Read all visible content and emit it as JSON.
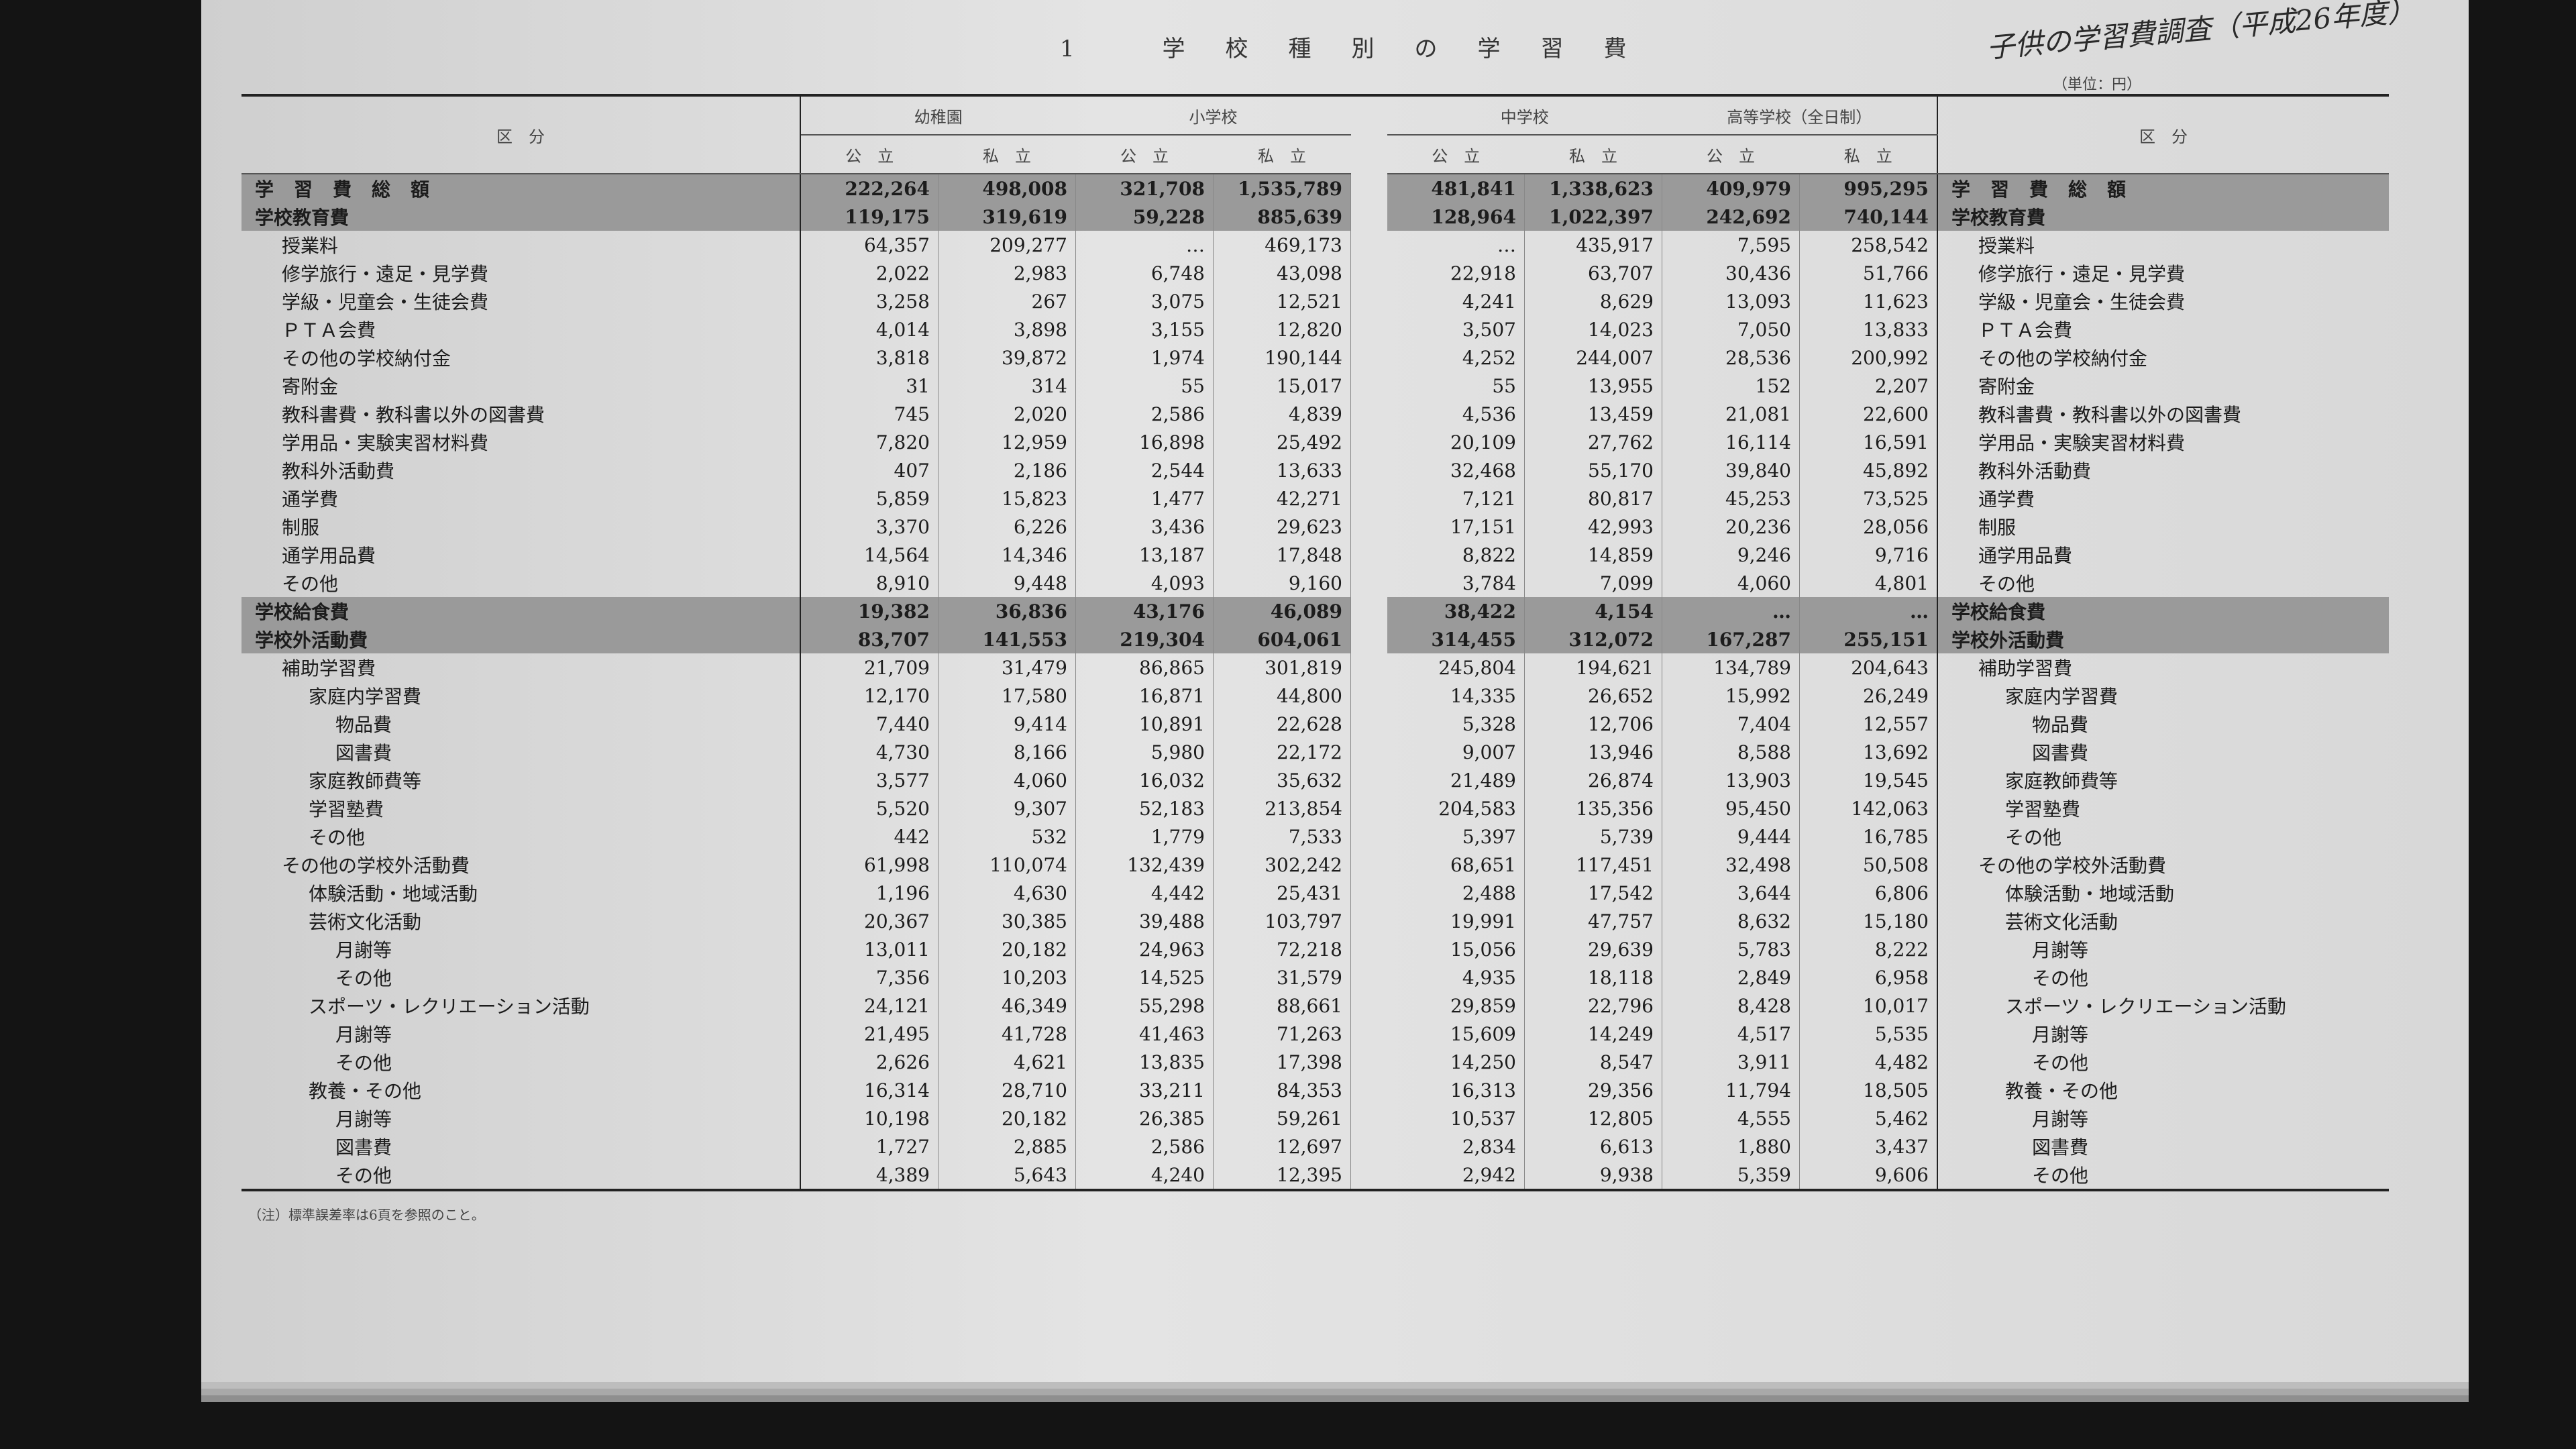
{
  "header": {
    "title": "1 学校種別の学習費",
    "handwritten": "子供の学習費調査（平成26年度）",
    "unit": "（単位：円）",
    "category": "区　分"
  },
  "columns": {
    "groups": [
      "幼稚園",
      "小学校",
      "中学校",
      "高等学校（全日制）"
    ],
    "sub": [
      "公　立",
      "私　立"
    ]
  },
  "rows": [
    {
      "label": "学習費総額",
      "level": 0,
      "shade": "dark",
      "values": [
        "222,264",
        "498,008",
        "321,708",
        "1,535,789",
        "481,841",
        "1,338,623",
        "409,979",
        "995,295"
      ]
    },
    {
      "label": "学校教育費",
      "level": 0,
      "shade": "mid",
      "values": [
        "119,175",
        "319,619",
        "59,228",
        "885,639",
        "128,964",
        "1,022,397",
        "242,692",
        "740,144"
      ]
    },
    {
      "label": "授業料",
      "level": 1,
      "values": [
        "64,357",
        "209,277",
        "…",
        "469,173",
        "…",
        "435,917",
        "7,595",
        "258,542"
      ]
    },
    {
      "label": "修学旅行・遠足・見学費",
      "level": 1,
      "values": [
        "2,022",
        "2,983",
        "6,748",
        "43,098",
        "22,918",
        "63,707",
        "30,436",
        "51,766"
      ]
    },
    {
      "label": "学級・児童会・生徒会費",
      "level": 1,
      "values": [
        "3,258",
        "267",
        "3,075",
        "12,521",
        "4,241",
        "8,629",
        "13,093",
        "11,623"
      ]
    },
    {
      "label": "ＰＴＡ会費",
      "level": 1,
      "values": [
        "4,014",
        "3,898",
        "3,155",
        "12,820",
        "3,507",
        "14,023",
        "7,050",
        "13,833"
      ]
    },
    {
      "label": "その他の学校納付金",
      "level": 1,
      "values": [
        "3,818",
        "39,872",
        "1,974",
        "190,144",
        "4,252",
        "244,007",
        "28,536",
        "200,992"
      ]
    },
    {
      "label": "寄附金",
      "level": 1,
      "values": [
        "31",
        "314",
        "55",
        "15,017",
        "55",
        "13,955",
        "152",
        "2,207"
      ]
    },
    {
      "label": "教科書費・教科書以外の図書費",
      "level": 1,
      "values": [
        "745",
        "2,020",
        "2,586",
        "4,839",
        "4,536",
        "13,459",
        "21,081",
        "22,600"
      ]
    },
    {
      "label": "学用品・実験実習材料費",
      "level": 1,
      "values": [
        "7,820",
        "12,959",
        "16,898",
        "25,492",
        "20,109",
        "27,762",
        "16,114",
        "16,591"
      ]
    },
    {
      "label": "教科外活動費",
      "level": 1,
      "values": [
        "407",
        "2,186",
        "2,544",
        "13,633",
        "32,468",
        "55,170",
        "39,840",
        "45,892"
      ]
    },
    {
      "label": "通学費",
      "level": 1,
      "values": [
        "5,859",
        "15,823",
        "1,477",
        "42,271",
        "7,121",
        "80,817",
        "45,253",
        "73,525"
      ]
    },
    {
      "label": "制服",
      "level": 1,
      "values": [
        "3,370",
        "6,226",
        "3,436",
        "29,623",
        "17,151",
        "42,993",
        "20,236",
        "28,056"
      ]
    },
    {
      "label": "通学用品費",
      "level": 1,
      "values": [
        "14,564",
        "14,346",
        "13,187",
        "17,848",
        "8,822",
        "14,859",
        "9,246",
        "9,716"
      ]
    },
    {
      "label": "その他",
      "level": 1,
      "values": [
        "8,910",
        "9,448",
        "4,093",
        "9,160",
        "3,784",
        "7,099",
        "4,060",
        "4,801"
      ]
    },
    {
      "label": "学校給食費",
      "level": 0,
      "shade": "mid",
      "values": [
        "19,382",
        "36,836",
        "43,176",
        "46,089",
        "38,422",
        "4,154",
        "…",
        "…"
      ]
    },
    {
      "label": "学校外活動費",
      "level": 0,
      "shade": "mid",
      "values": [
        "83,707",
        "141,553",
        "219,304",
        "604,061",
        "314,455",
        "312,072",
        "167,287",
        "255,151"
      ]
    },
    {
      "label": "補助学習費",
      "level": 1,
      "values": [
        "21,709",
        "31,479",
        "86,865",
        "301,819",
        "245,804",
        "194,621",
        "134,789",
        "204,643"
      ]
    },
    {
      "label": "家庭内学習費",
      "level": 2,
      "values": [
        "12,170",
        "17,580",
        "16,871",
        "44,800",
        "14,335",
        "26,652",
        "15,992",
        "26,249"
      ]
    },
    {
      "label": "物品費",
      "level": 3,
      "values": [
        "7,440",
        "9,414",
        "10,891",
        "22,628",
        "5,328",
        "12,706",
        "7,404",
        "12,557"
      ]
    },
    {
      "label": "図書費",
      "level": 3,
      "values": [
        "4,730",
        "8,166",
        "5,980",
        "22,172",
        "9,007",
        "13,946",
        "8,588",
        "13,692"
      ]
    },
    {
      "label": "家庭教師費等",
      "level": 2,
      "values": [
        "3,577",
        "4,060",
        "16,032",
        "35,632",
        "21,489",
        "26,874",
        "13,903",
        "19,545"
      ]
    },
    {
      "label": "学習塾費",
      "level": 2,
      "values": [
        "5,520",
        "9,307",
        "52,183",
        "213,854",
        "204,583",
        "135,356",
        "95,450",
        "142,063"
      ]
    },
    {
      "label": "その他",
      "level": 2,
      "values": [
        "442",
        "532",
        "1,779",
        "7,533",
        "5,397",
        "5,739",
        "9,444",
        "16,785"
      ]
    },
    {
      "label": "その他の学校外活動費",
      "level": 1,
      "values": [
        "61,998",
        "110,074",
        "132,439",
        "302,242",
        "68,651",
        "117,451",
        "32,498",
        "50,508"
      ]
    },
    {
      "label": "体験活動・地域活動",
      "level": 2,
      "values": [
        "1,196",
        "4,630",
        "4,442",
        "25,431",
        "2,488",
        "17,542",
        "3,644",
        "6,806"
      ]
    },
    {
      "label": "芸術文化活動",
      "level": 2,
      "values": [
        "20,367",
        "30,385",
        "39,488",
        "103,797",
        "19,991",
        "47,757",
        "8,632",
        "15,180"
      ]
    },
    {
      "label": "月謝等",
      "level": 3,
      "values": [
        "13,011",
        "20,182",
        "24,963",
        "72,218",
        "15,056",
        "29,639",
        "5,783",
        "8,222"
      ]
    },
    {
      "label": "その他",
      "level": 3,
      "values": [
        "7,356",
        "10,203",
        "14,525",
        "31,579",
        "4,935",
        "18,118",
        "2,849",
        "6,958"
      ]
    },
    {
      "label": "スポーツ・レクリエーション活動",
      "level": 2,
      "values": [
        "24,121",
        "46,349",
        "55,298",
        "88,661",
        "29,859",
        "22,796",
        "8,428",
        "10,017"
      ]
    },
    {
      "label": "月謝等",
      "level": 3,
      "values": [
        "21,495",
        "41,728",
        "41,463",
        "71,263",
        "15,609",
        "14,249",
        "4,517",
        "5,535"
      ]
    },
    {
      "label": "その他",
      "level": 3,
      "values": [
        "2,626",
        "4,621",
        "13,835",
        "17,398",
        "14,250",
        "8,547",
        "3,911",
        "4,482"
      ]
    },
    {
      "label": "教養・その他",
      "level": 2,
      "values": [
        "16,314",
        "28,710",
        "33,211",
        "84,353",
        "16,313",
        "29,356",
        "11,794",
        "18,505"
      ]
    },
    {
      "label": "月謝等",
      "level": 3,
      "values": [
        "10,198",
        "20,182",
        "26,385",
        "59,261",
        "10,537",
        "12,805",
        "4,555",
        "5,462"
      ]
    },
    {
      "label": "図書費",
      "level": 3,
      "values": [
        "1,727",
        "2,885",
        "2,586",
        "12,697",
        "2,834",
        "6,613",
        "1,880",
        "3,437"
      ]
    },
    {
      "label": "その他",
      "level": 3,
      "values": [
        "4,389",
        "5,643",
        "4,240",
        "12,395",
        "2,942",
        "9,938",
        "5,359",
        "9,606"
      ]
    }
  ],
  "note": "（注）標準誤差率は6頁を参照のこと。"
}
